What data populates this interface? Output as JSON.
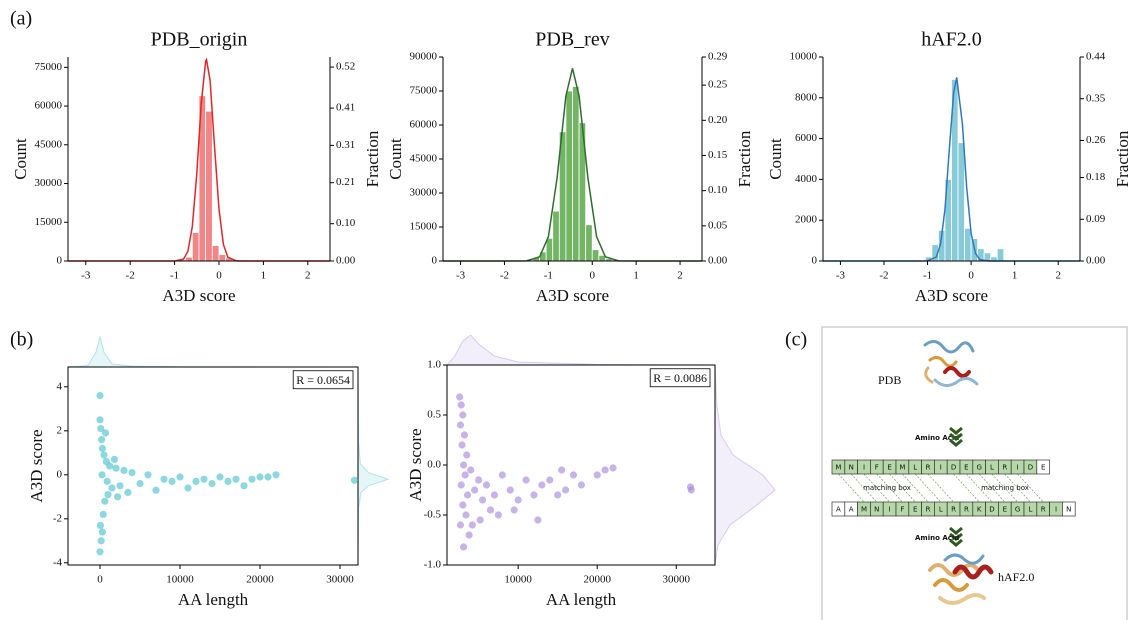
{
  "panel_labels": [
    "(a)",
    "(b)",
    "(c)"
  ],
  "chart_data": [
    {
      "type": "histogram",
      "title": "PDB_origin",
      "x_label": "A3D score",
      "y_label": "Count",
      "y2_label": "Fraction",
      "color": "#f07070",
      "bins": [
        -1.05,
        -0.9,
        -0.75,
        -0.6,
        -0.45,
        -0.3,
        -0.15,
        0,
        0.15,
        0.3,
        0.45,
        0.6,
        0.75
      ],
      "values": [
        200,
        500,
        1500,
        11000,
        64000,
        58000,
        6000,
        2500,
        1200,
        600,
        300,
        100
      ],
      "fit": {
        "color": "#e02828",
        "x": [
          -3.4,
          -1.2,
          -1.0,
          -0.8,
          -0.7,
          -0.6,
          -0.5,
          -0.4,
          -0.3,
          -0.28,
          -0.2,
          -0.1,
          0,
          0.1,
          0.2,
          0.4,
          0.6,
          2.5
        ],
        "values": [
          0,
          0,
          10,
          720,
          3700,
          13300,
          33800,
          60800,
          77500,
          78000,
          69900,
          44500,
          20100,
          6400,
          1440,
          26,
          0,
          0
        ]
      },
      "xlim": [
        -3.4,
        2.5
      ],
      "xticks": [
        -3,
        -2,
        -1,
        0,
        1,
        2
      ],
      "ylim": [
        0,
        79000
      ],
      "yticks": [
        0,
        15000,
        30000,
        45000,
        60000,
        75000
      ],
      "y2lim": [
        0,
        0.547
      ],
      "y2ticks": [
        {
          "value": 0,
          "label": "0.00"
        },
        {
          "value": 0.1,
          "label": "0.10"
        },
        0.21,
        0.31,
        0.41,
        0.52
      ]
    },
    {
      "type": "histogram",
      "title": "PDB_rev",
      "x_label": "A3D score",
      "y_label": "Count",
      "y2_label": "Fraction",
      "color": "#5aa84a",
      "bins": [
        -1.35,
        -1.2,
        -1.05,
        -0.9,
        -0.75,
        -0.6,
        -0.45,
        -0.3,
        -0.15,
        0,
        0.15,
        0.3,
        0.45,
        0.6
      ],
      "values": [
        1500,
        4000,
        10000,
        22000,
        57000,
        75000,
        77000,
        61000,
        16000,
        5000,
        2500,
        1000,
        400
      ],
      "fit": {
        "color": "#2f6b2f",
        "x": [
          -3.4,
          -2,
          -1.5,
          -1.2,
          -1,
          -0.8,
          -0.6,
          -0.45,
          -0.3,
          -0.1,
          0.1,
          0.3,
          0.6,
          1,
          2.5
        ],
        "values": [
          0,
          0,
          44,
          1790,
          10700,
          36700,
          72800,
          85000,
          72800,
          36700,
          10700,
          1790,
          44,
          0,
          0
        ]
      },
      "xlim": [
        -3.4,
        2.5
      ],
      "xticks": [
        -3,
        -2,
        -1,
        0,
        1,
        2
      ],
      "ylim": [
        0,
        90000
      ],
      "yticks": [
        0,
        15000,
        30000,
        45000,
        60000,
        75000,
        90000
      ],
      "y2lim": [
        0,
        0.29
      ],
      "y2ticks": [
        {
          "value": 0,
          "label": "0.00"
        },
        0.05,
        {
          "value": 0.1,
          "label": "0.10"
        },
        0.15,
        {
          "value": 0.2,
          "label": "0.20"
        },
        0.25,
        0.29
      ]
    },
    {
      "type": "histogram",
      "title": "hAF2.0",
      "x_label": "A3D score",
      "y_label": "Count",
      "y2_label": "Fraction",
      "color": "#72c2d2",
      "bins": [
        -1.05,
        -0.9,
        -0.75,
        -0.6,
        -0.45,
        -0.3,
        -0.15,
        0,
        0.15,
        0.3,
        0.45,
        0.6,
        0.75
      ],
      "values": [
        200,
        800,
        1500,
        4000,
        8900,
        5800,
        1600,
        1100,
        600,
        400,
        200,
        600
      ],
      "fit": {
        "color": "#2f78c0",
        "x": [
          -3.4,
          -1.2,
          -1,
          -0.8,
          -0.7,
          -0.6,
          -0.5,
          -0.4,
          -0.33,
          -0.2,
          -0.1,
          0,
          0.1,
          0.2,
          0.4,
          2.5
        ],
        "values": [
          0,
          0,
          4,
          197,
          842,
          2550,
          5460,
          8270,
          9000,
          6720,
          3600,
          1370,
          367,
          70,
          0,
          0
        ]
      },
      "xlim": [
        -3.4,
        2.5
      ],
      "xticks": [
        -3,
        -2,
        -1,
        0,
        1,
        2
      ],
      "ylim": [
        0,
        10000
      ],
      "yticks": [
        0,
        2000,
        4000,
        6000,
        8000,
        10000
      ],
      "y2lim": [
        0,
        0.44
      ],
      "y2ticks": [
        {
          "value": 0,
          "label": "0.00"
        },
        0.09,
        0.18,
        0.26,
        0.35,
        0.44
      ]
    },
    {
      "type": "scatter",
      "x_label": "AA length",
      "y_label": "A3D score",
      "annotation": "R = 0.0654",
      "color": "#4ec3d1",
      "x": [
        0,
        0,
        100,
        200,
        50,
        150,
        0,
        300,
        400,
        500,
        600,
        800,
        1000,
        1200,
        1500,
        2000,
        2500,
        3000,
        3500,
        4000,
        5000,
        6000,
        7000,
        8000,
        9000,
        10000,
        11000,
        12000,
        13000,
        14000,
        15000,
        16000,
        17000,
        18000,
        19000,
        20000,
        21000,
        22000,
        31800,
        700,
        300,
        250,
        900,
        1800,
        2200
      ],
      "values": [
        3.6,
        2.5,
        2.1,
        1.6,
        -2.3,
        -3.0,
        -3.5,
        1.2,
        -1.8,
        0.9,
        -1.2,
        0.6,
        -0.9,
        0.4,
        -0.6,
        0.3,
        -0.5,
        0.2,
        -0.8,
        0.1,
        -0.4,
        0.0,
        -0.7,
        -0.2,
        -0.3,
        -0.1,
        -0.6,
        -0.3,
        -0.2,
        -0.4,
        -0.1,
        -0.3,
        -0.2,
        -0.5,
        -0.2,
        -0.1,
        -0.1,
        0.0,
        -0.25,
        1.9,
        -2.6,
        0.0,
        -0.3,
        0.7,
        -1.0
      ],
      "xlim": [
        -4000,
        32250
      ],
      "xticks": [
        0,
        10000,
        20000,
        30000
      ],
      "ylim": [
        -4.1,
        4.9
      ],
      "yticks": [
        -4,
        -2,
        0,
        2,
        4
      ],
      "x_density": {
        "x": [
          -4000,
          -1500,
          -500,
          0,
          500,
          1500,
          4000,
          10000,
          32000
        ],
        "values": [
          0,
          0.05,
          0.5,
          1,
          0.5,
          0.1,
          0.03,
          0.01,
          0
        ]
      },
      "y_density": {
        "y": [
          -4,
          -1.5,
          -0.8,
          -0.5,
          -0.2,
          0.1,
          0.5,
          1.5,
          4.8
        ],
        "values": [
          0,
          0.02,
          0.1,
          0.35,
          1,
          0.35,
          0.08,
          0.02,
          0
        ]
      }
    },
    {
      "type": "scatter",
      "x_label": "AA length",
      "y_label": "A3D score",
      "annotation": "R = 0.0086",
      "color": "#a98bdc",
      "x": [
        2600,
        2800,
        3000,
        2700,
        3200,
        2900,
        3500,
        3100,
        3300,
        2800,
        3600,
        3000,
        3400,
        2700,
        3800,
        3100,
        4000,
        4500,
        5000,
        5500,
        6000,
        6500,
        7000,
        8000,
        9000,
        10000,
        11000,
        12000,
        12500,
        13000,
        14000,
        15000,
        15500,
        16000,
        17000,
        18000,
        20000,
        21000,
        22000,
        31800,
        31900,
        4200,
        5200,
        7500,
        9500
      ],
      "values": [
        0.68,
        0.6,
        0.5,
        0.4,
        0.3,
        0.2,
        0.1,
        0.0,
        -0.1,
        -0.2,
        -0.3,
        -0.4,
        -0.5,
        -0.6,
        -0.7,
        -0.82,
        -0.05,
        -0.25,
        -0.15,
        -0.35,
        -0.2,
        -0.45,
        -0.3,
        -0.1,
        -0.25,
        -0.35,
        -0.15,
        -0.3,
        -0.55,
        -0.2,
        -0.15,
        -0.3,
        -0.05,
        -0.25,
        -0.1,
        -0.2,
        -0.1,
        -0.05,
        -0.03,
        -0.22,
        -0.25,
        -0.6,
        -0.55,
        -0.5,
        -0.45
      ],
      "xlim": [
        1000,
        34900
      ],
      "xticks": [
        10000,
        20000,
        30000
      ],
      "ylim": [
        -1,
        1
      ],
      "yticks": [
        {
          "value": -1,
          "label": "-1.0"
        },
        -0.5,
        {
          "value": 0,
          "label": "0.0"
        },
        0.5,
        {
          "value": 1,
          "label": "1.0"
        }
      ],
      "x_density": {
        "x": [
          1000,
          2000,
          3000,
          4000,
          5000,
          7000,
          10000,
          20000,
          34000
        ],
        "values": [
          0,
          0.3,
          0.8,
          1,
          0.7,
          0.3,
          0.1,
          0.02,
          0
        ]
      },
      "y_density": {
        "y": [
          -1,
          -0.8,
          -0.6,
          -0.4,
          -0.25,
          -0.1,
          0.1,
          0.3,
          0.6,
          1
        ],
        "values": [
          0,
          0.05,
          0.25,
          0.7,
          1,
          0.8,
          0.3,
          0.1,
          0.03,
          0
        ]
      }
    }
  ],
  "diagram": {
    "top_label": "PDB",
    "step_label": "Amino Acid",
    "box_label": "matching box",
    "bottom_label": "hAF2.0",
    "top_sequence": [
      "M",
      "N",
      "I",
      "F",
      "E",
      "M",
      "L",
      "R",
      "I",
      "D",
      "E",
      "G",
      "L",
      "R",
      "I",
      "D",
      "E"
    ],
    "bottom_sequence": [
      "A",
      "A",
      "M",
      "N",
      "I",
      "F",
      "E",
      "R",
      "L",
      "R",
      "R",
      "K",
      "D",
      "E",
      "G",
      "L",
      "R",
      "I",
      "N"
    ]
  }
}
